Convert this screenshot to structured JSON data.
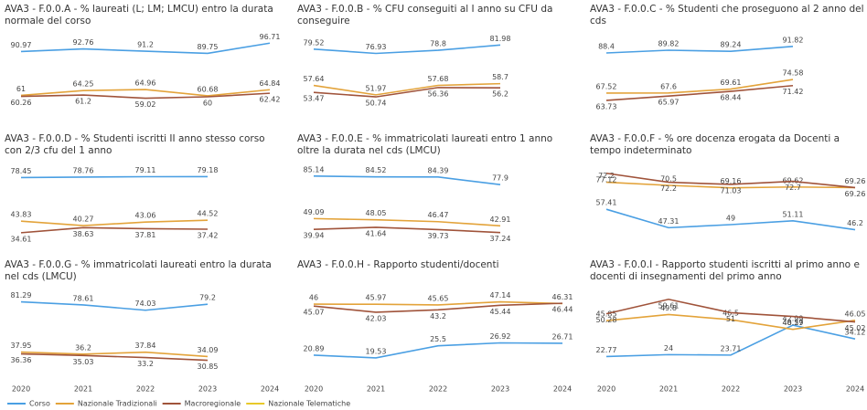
{
  "chart_data": {
    "type": "line",
    "categories": [
      2020,
      2021,
      2022,
      2023,
      2024
    ],
    "legend": [
      {
        "name": "Corso",
        "color": "#4a9fe3"
      },
      {
        "name": "Nazionale Tradizionali",
        "color": "#e3a33a"
      },
      {
        "name": "Macroregionale",
        "color": "#a0533a"
      },
      {
        "name": "Nazionale Telematiche",
        "color": "#e8c92a"
      }
    ],
    "panels": [
      {
        "title": "AVA3 - F.0.0.A - % laureati (L; LM; LMCU) entro la durata normale del corso",
        "ylim": [
          50,
          100
        ],
        "series": [
          [
            90.97,
            92.76,
            91.2,
            89.75,
            96.71
          ],
          [
            61.0,
            64.25,
            64.96,
            60.68,
            64.84
          ],
          [
            60.26,
            61.2,
            59.02,
            60.0,
            62.42
          ]
        ]
      },
      {
        "title": "AVA3 - F.0.0.B - % CFU conseguiti al I anno su CFU da conseguire",
        "ylim": [
          42,
          86
        ],
        "series": [
          [
            79.52,
            76.93,
            78.8,
            81.98,
            null
          ],
          [
            57.64,
            51.97,
            57.68,
            58.7,
            null
          ],
          [
            53.47,
            50.74,
            56.36,
            56.2,
            null
          ]
        ]
      },
      {
        "title": "AVA3 - F.0.0.C - % Studenti che proseguono al 2 anno del cds",
        "ylim": [
          58,
          96
        ],
        "series": [
          [
            88.4,
            89.82,
            89.24,
            91.82,
            null
          ],
          [
            67.52,
            67.6,
            69.61,
            74.58,
            null
          ],
          [
            63.73,
            65.97,
            68.44,
            71.42,
            null
          ]
        ]
      },
      {
        "title": "AVA3 - F.0.0.D - % Studenti iscritti II anno stesso corso con 2/3 cfu del 1 anno",
        "ylim": [
          28,
          86
        ],
        "series": [
          [
            78.45,
            78.76,
            79.11,
            79.18,
            null
          ],
          [
            43.83,
            40.27,
            43.06,
            44.52,
            null
          ],
          [
            34.61,
            38.63,
            37.81,
            37.42,
            null
          ]
        ]
      },
      {
        "title": "AVA3 - F.0.0.E - % immatricolati laureati entro 1 anno oltre la durata nel cds (LMCU)",
        "ylim": [
          30,
          92
        ],
        "series": [
          [
            85.14,
            84.52,
            84.39,
            77.9,
            null
          ],
          [
            49.09,
            48.05,
            46.47,
            42.91,
            null
          ],
          [
            39.94,
            41.64,
            39.73,
            37.24,
            null
          ]
        ]
      },
      {
        "title": "AVA3 - F.0.0.F - % ore docenza erogata da Docenti a tempo indeterminato",
        "ylim": [
          40,
          80
        ],
        "series": [
          [
            57.41,
            47.31,
            49.0,
            51.11,
            46.2
          ],
          [
            72.2,
            70.5,
            69.16,
            69.62,
            69.26
          ],
          [
            77.12,
            72.2,
            71.03,
            72.7,
            69.26
          ]
        ]
      },
      {
        "title": "AVA3 - F.0.0.G - % immatricolati laureati entro la durata nel cds (LMCU)",
        "ylim": [
          25,
          88
        ],
        "series": [
          [
            81.29,
            78.61,
            74.03,
            79.2,
            null
          ],
          [
            37.95,
            36.2,
            37.84,
            34.09,
            null
          ],
          [
            36.36,
            35.03,
            33.2,
            30.85,
            null
          ]
        ]
      },
      {
        "title": "AVA3 - F.0.0.H - Rapporto studenti/docenti",
        "ylim": [
          15,
          51
        ],
        "series": [
          [
            20.89,
            19.53,
            25.5,
            26.92,
            26.71
          ],
          [
            46.0,
            45.97,
            45.65,
            47.14,
            46.31
          ],
          [
            45.07,
            42.03,
            43.2,
            45.44,
            46.44
          ]
        ]
      },
      {
        "title": "AVA3 - F.0.0.I - Rapporto studenti iscritti al primo anno e docenti di insegnamenti del primo anno",
        "ylim": [
          16,
          63
        ],
        "series": [
          [
            22.77,
            24.0,
            23.71,
            42.99,
            34.12
          ],
          [
            45.85,
            49.8,
            46.5,
            40.29,
            46.05
          ],
          [
            50.28,
            59.61,
            51.0,
            48.57,
            45.02
          ]
        ]
      }
    ]
  }
}
